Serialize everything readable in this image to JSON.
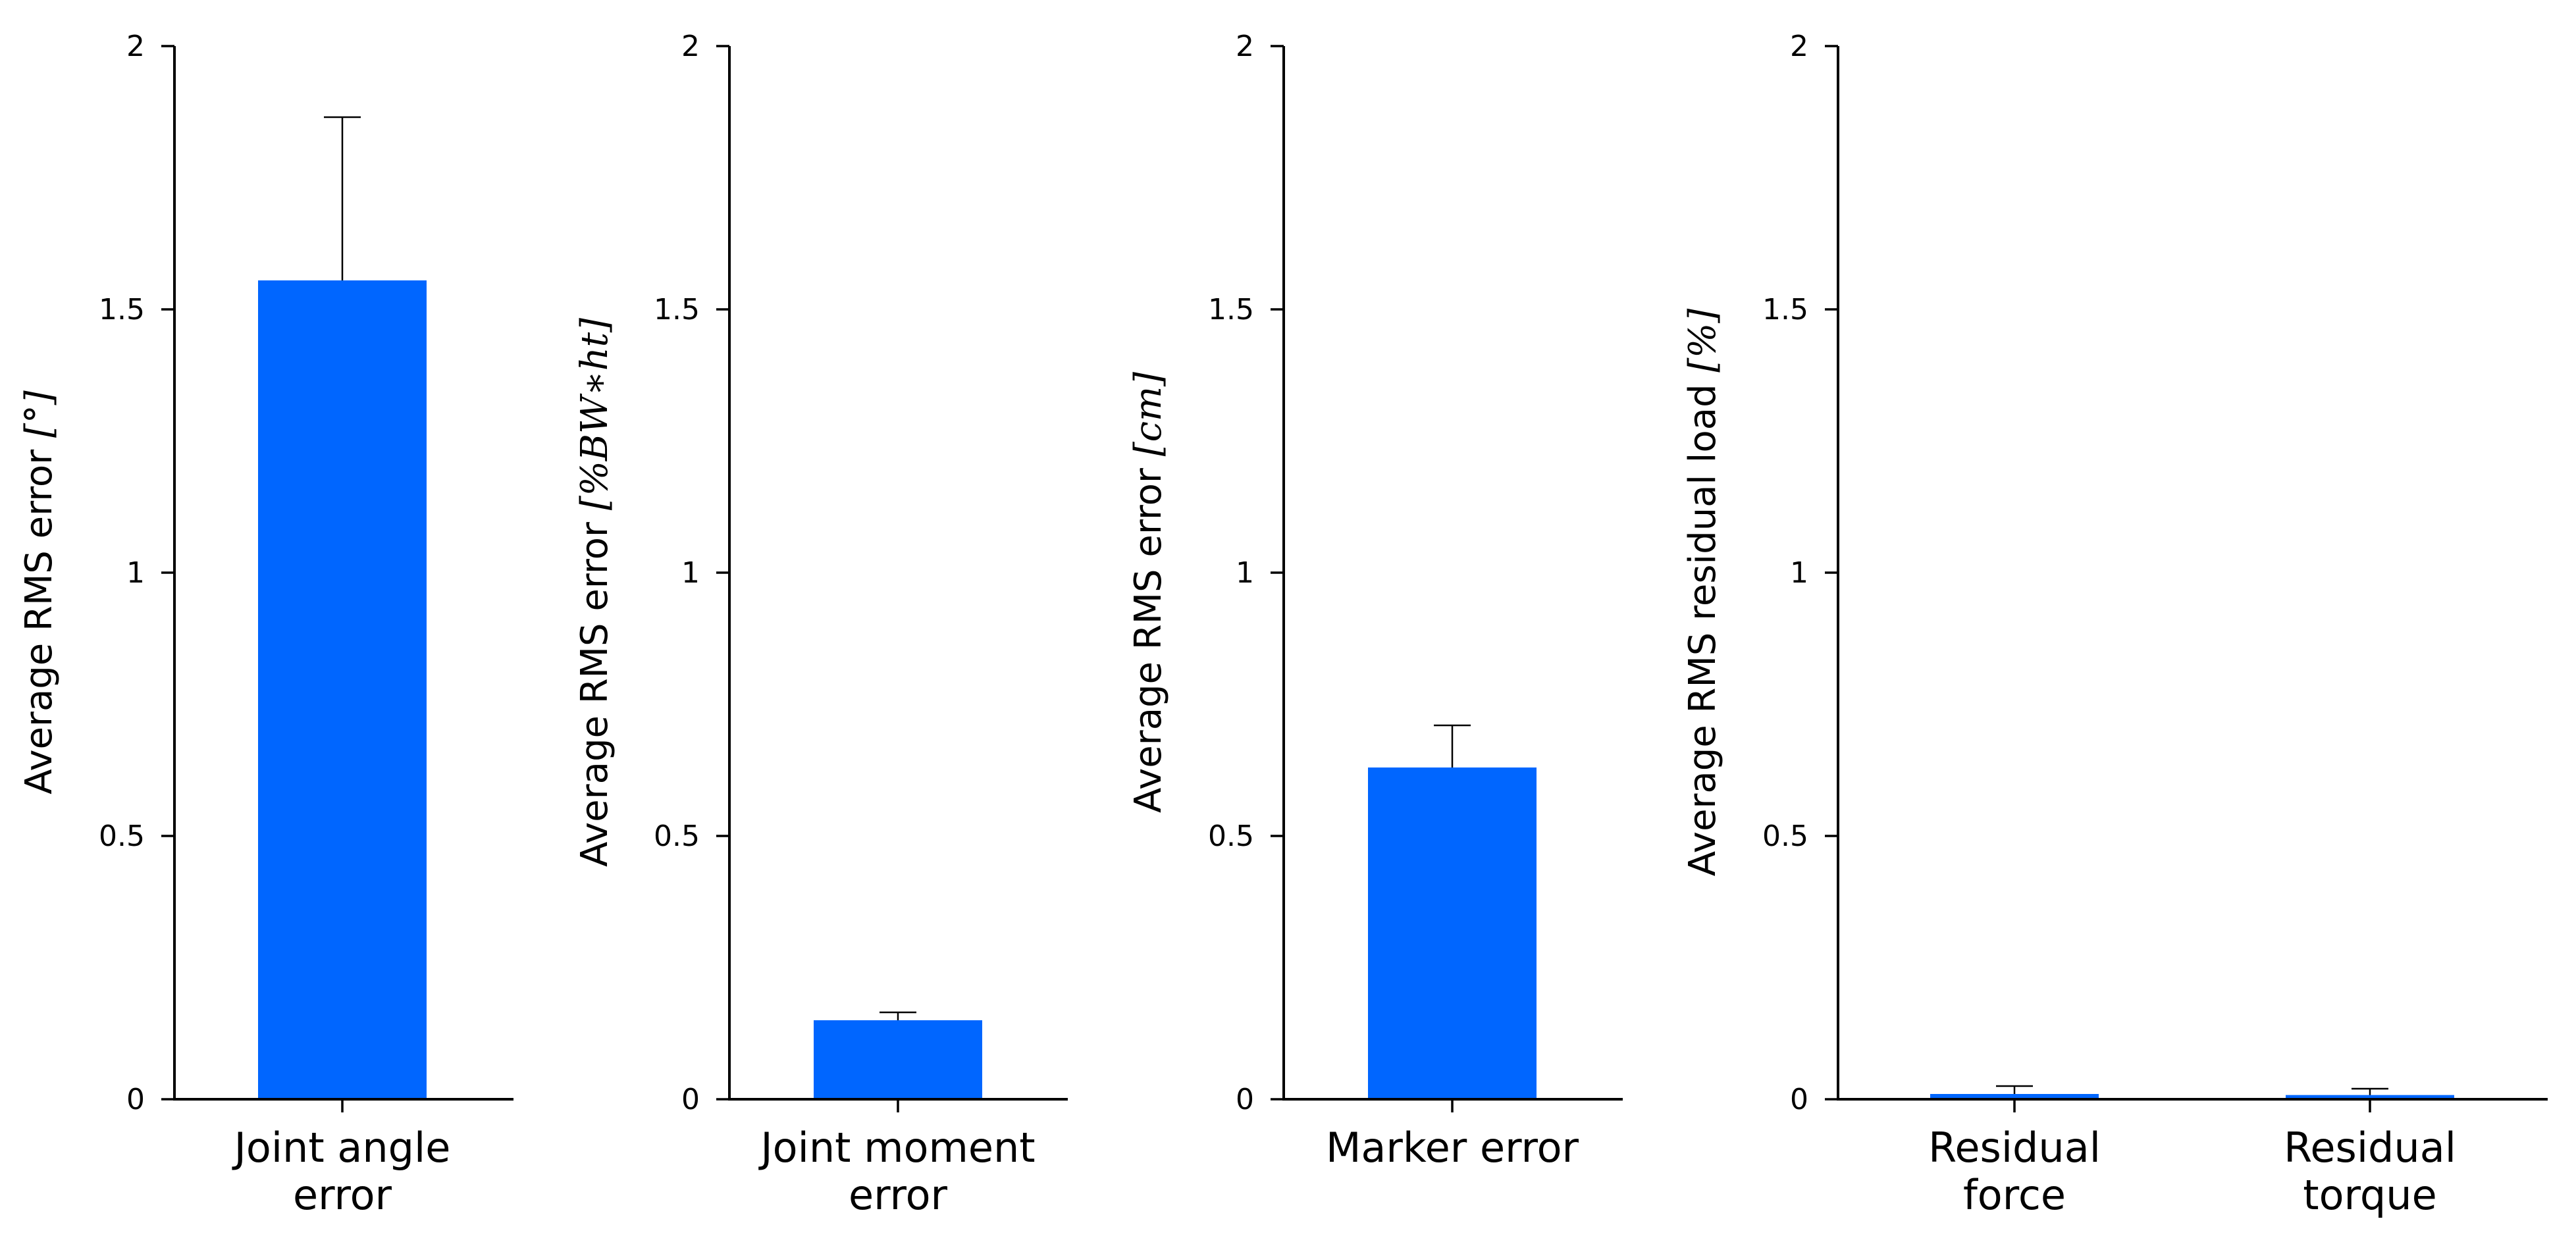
{
  "chart_data": [
    {
      "type": "bar",
      "categories": [
        "Joint angle error"
      ],
      "category_lines": [
        [
          "Joint angle",
          "error"
        ]
      ],
      "values": [
        1.555
      ],
      "errors": [
        0.31
      ],
      "ylabel": "Average RMS error",
      "ylabel_unit": "[°]",
      "ylim": [
        0,
        2
      ],
      "yticks": [
        "0",
        "0.5",
        "1",
        "1.5",
        "2"
      ],
      "grid": false,
      "color": "#0066ff"
    },
    {
      "type": "bar",
      "categories": [
        "Joint moment error"
      ],
      "category_lines": [
        [
          "Joint moment",
          "error"
        ]
      ],
      "values": [
        0.15
      ],
      "errors": [
        0.015
      ],
      "ylabel": "Average RMS error",
      "ylabel_unit": "[%BW∗ht]",
      "ylim": [
        0,
        2
      ],
      "yticks": [
        "0",
        "0.5",
        "1",
        "1.5",
        "2"
      ],
      "grid": false,
      "color": "#0066ff"
    },
    {
      "type": "bar",
      "categories": [
        "Marker error"
      ],
      "category_lines": [
        [
          "Marker error"
        ]
      ],
      "values": [
        0.63
      ],
      "errors": [
        0.08
      ],
      "ylabel": "Average RMS error",
      "ylabel_unit": "[cm]",
      "ylim": [
        0,
        2
      ],
      "yticks": [
        "0",
        "0.5",
        "1",
        "1.5",
        "2"
      ],
      "grid": false,
      "color": "#0066ff"
    },
    {
      "type": "bar",
      "categories": [
        "Residual force",
        "Residual torque"
      ],
      "category_lines": [
        [
          "Residual",
          "force"
        ],
        [
          "Residual",
          "torque"
        ]
      ],
      "values": [
        0.01,
        0.008
      ],
      "errors": [
        0.015,
        0.012
      ],
      "ylabel": "Average RMS residual load",
      "ylabel_unit": "[%]",
      "ylim": [
        0,
        2
      ],
      "yticks": [
        "0",
        "0.5",
        "1",
        "1.5",
        "2"
      ],
      "grid": false,
      "color": "#0066ff"
    }
  ]
}
